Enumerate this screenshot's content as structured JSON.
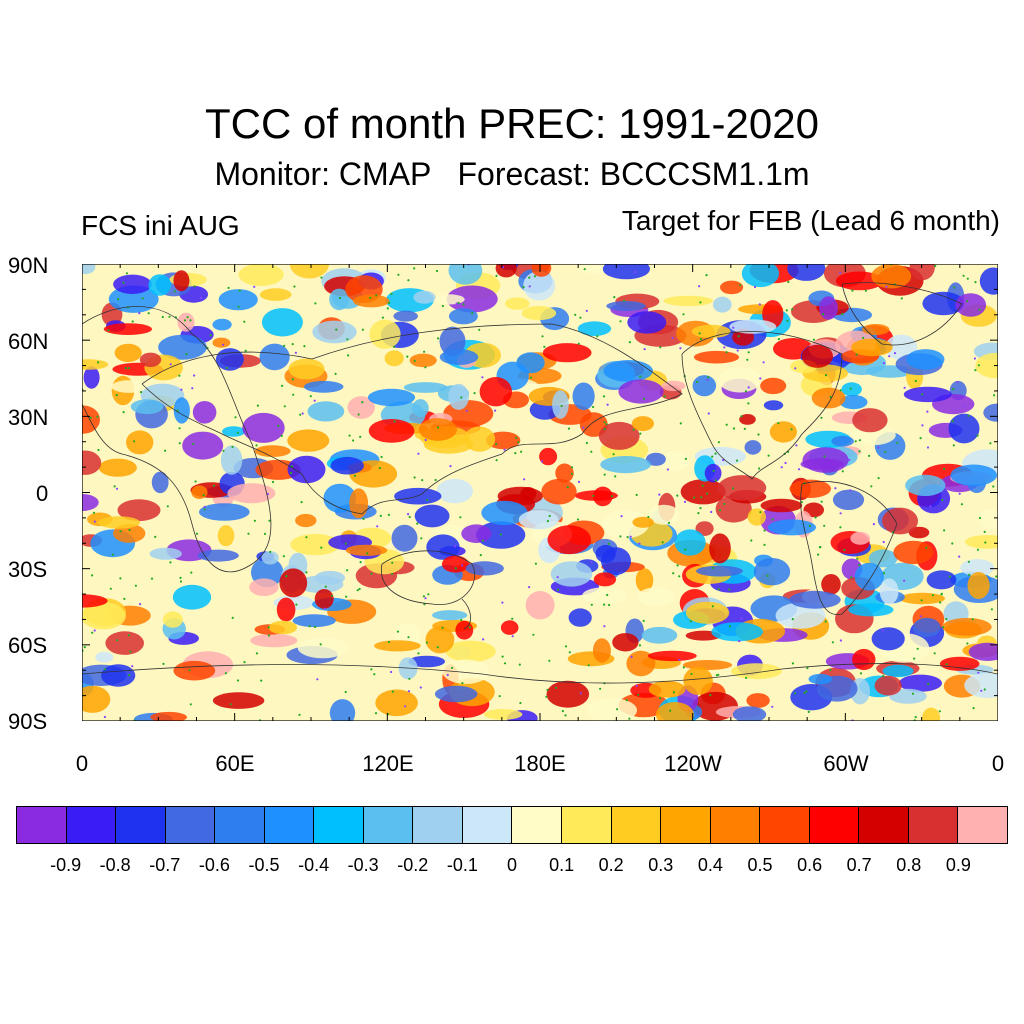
{
  "header": {
    "title": "TCC of month PREC: 1991-2020",
    "subtitle": "Monitor: CMAP   Forecast: BCCCSM1.1m",
    "left_label": "FCS ini AUG",
    "right_label": "Target for FEB (Lead 6 month)"
  },
  "axes": {
    "y_labels": [
      "90N",
      "60N",
      "30N",
      "0",
      "30S",
      "60S",
      "90S"
    ],
    "x_labels": [
      "0",
      "60E",
      "120E",
      "180E",
      "120W",
      "60W",
      "0"
    ]
  },
  "colorbar": {
    "labels": [
      "-0.9",
      "-0.8",
      "-0.7",
      "-0.6",
      "-0.5",
      "-0.4",
      "-0.3",
      "-0.2",
      "-0.1",
      "0",
      "0.1",
      "0.2",
      "0.3",
      "0.4",
      "0.5",
      "0.6",
      "0.7",
      "0.8",
      "0.9"
    ],
    "colors": [
      "#8a2be2",
      "#3a1cf5",
      "#1e32f0",
      "#4169e1",
      "#2f7ef0",
      "#1e90ff",
      "#00bfff",
      "#5bc0f0",
      "#a0d0f0",
      "#cce8f8",
      "#fffcc8",
      "#ffeb5a",
      "#ffcc22",
      "#ffa500",
      "#ff7f00",
      "#ff4500",
      "#ff0000",
      "#d40000",
      "#d83030",
      "#ffb0b0"
    ]
  },
  "map": {
    "field": "temporal correlation coefficient",
    "lon_range": [
      0,
      360
    ],
    "lat_range": [
      -90,
      90
    ],
    "significance_marker_color": "#22aa22",
    "negative_marker_color": "#8844ff"
  }
}
